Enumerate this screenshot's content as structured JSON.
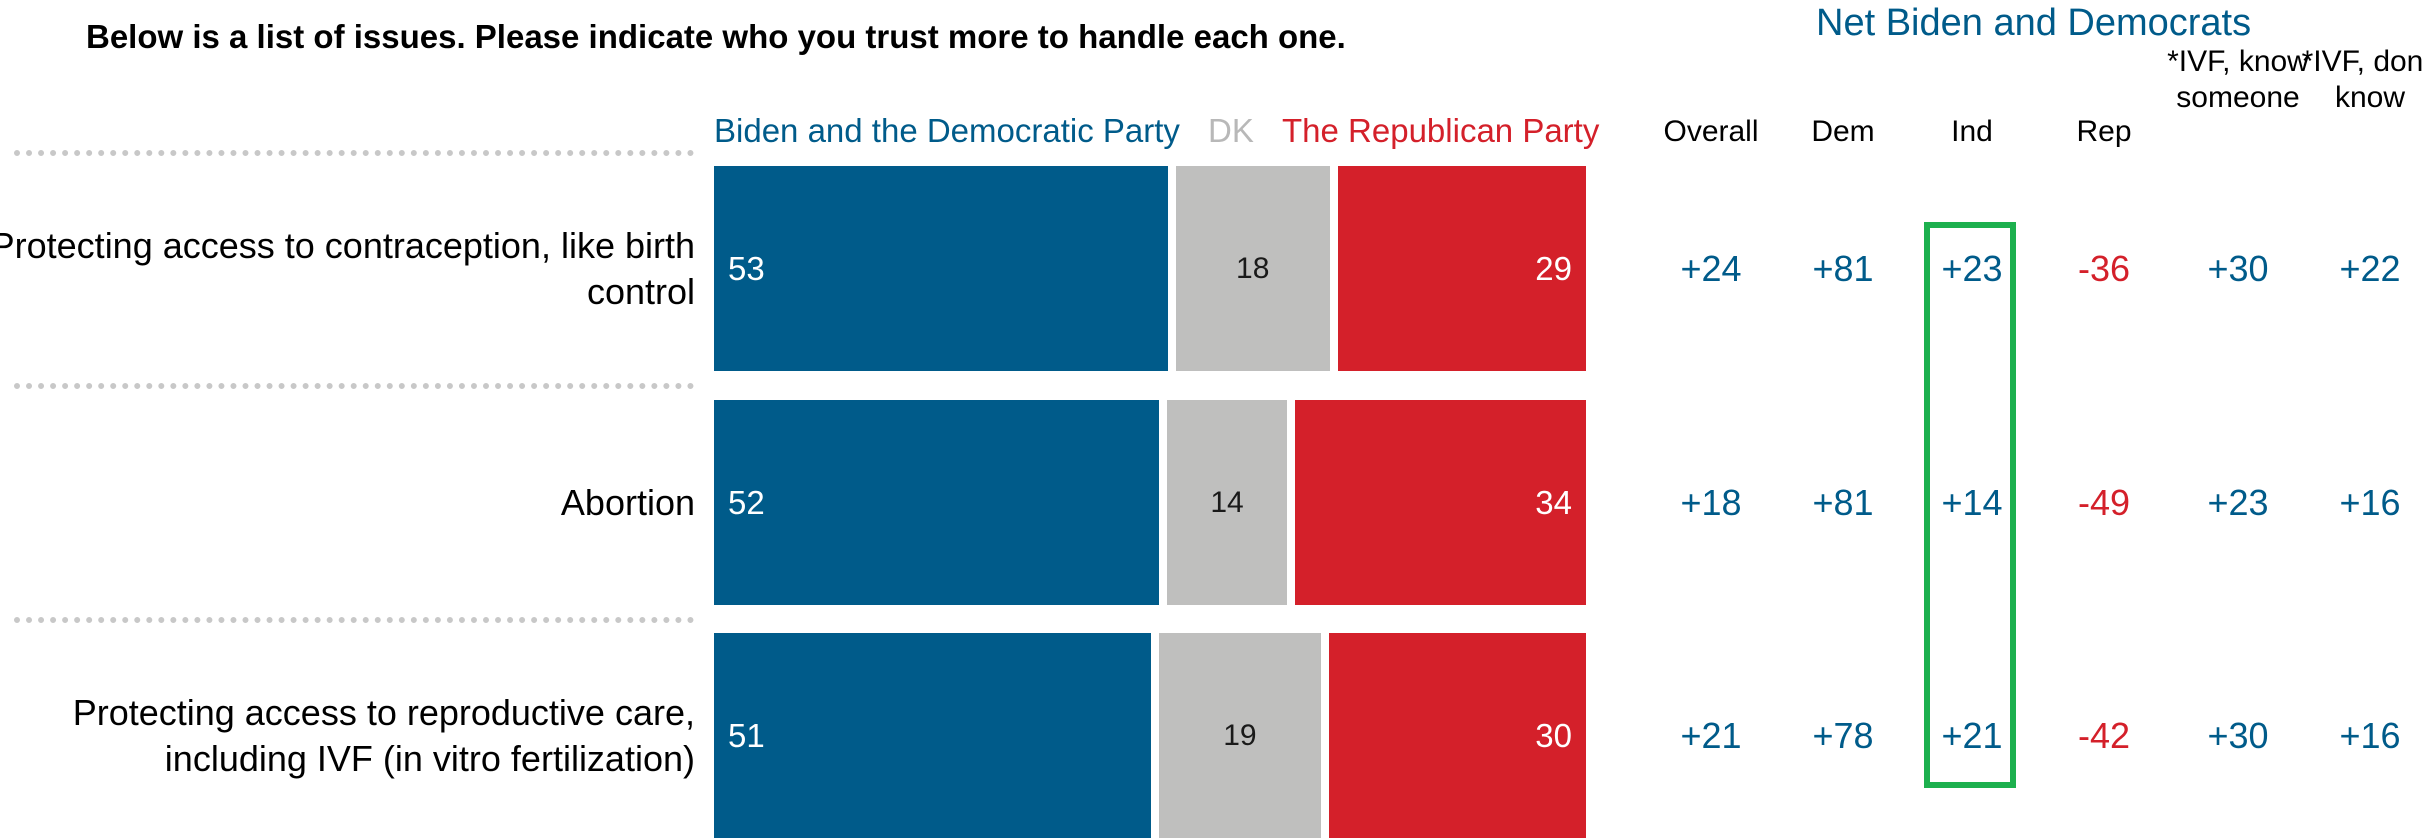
{
  "question": "Below is a list of issues. Please indicate who you trust more to handle each one.",
  "colors": {
    "biden": "#005B8A",
    "dk": "#BFBFBE",
    "republican": "#D4202A",
    "net_positive": "#005B8A",
    "net_negative": "#D4202A",
    "highlight": "#1DB04E"
  },
  "net_title": "Net Biden and Democrats",
  "net_columns": [
    {
      "key": "overall",
      "label": "Overall"
    },
    {
      "key": "dem",
      "label": "Dem"
    },
    {
      "key": "ind",
      "label": "Ind"
    },
    {
      "key": "rep",
      "label": "Rep"
    },
    {
      "key": "ivf_know",
      "label": "*IVF, know someone"
    },
    {
      "key": "ivf_dont",
      "label": "*IVF, don’t know"
    }
  ],
  "chart_data": {
    "type": "bar",
    "orientation": "horizontal-stacked",
    "legend": [
      "Biden and the Democratic Party",
      "DK",
      "The Republican Party"
    ],
    "categories": [
      "Protecting access to contraception, like birth control",
      "Abortion",
      "Protecting access to reproductive care, including IVF (in vitro fertilization)"
    ],
    "series": [
      {
        "name": "Biden and the Democratic Party",
        "values": [
          53,
          52,
          51
        ]
      },
      {
        "name": "DK",
        "values": [
          18,
          14,
          19
        ]
      },
      {
        "name": "The Republican Party",
        "values": [
          29,
          34,
          30
        ]
      }
    ],
    "net": [
      {
        "overall": "+24",
        "dem": "+81",
        "ind": "+23",
        "rep": "-36",
        "ivf_know": "+30",
        "ivf_dont": "+22"
      },
      {
        "overall": "+18",
        "dem": "+81",
        "ind": "+14",
        "rep": "-49",
        "ivf_know": "+23",
        "ivf_dont": "+16"
      },
      {
        "overall": "+21",
        "dem": "+78",
        "ind": "+21",
        "rep": "-42",
        "ivf_know": "+30",
        "ivf_dont": "+16"
      }
    ],
    "highlighted_column": "ind"
  }
}
